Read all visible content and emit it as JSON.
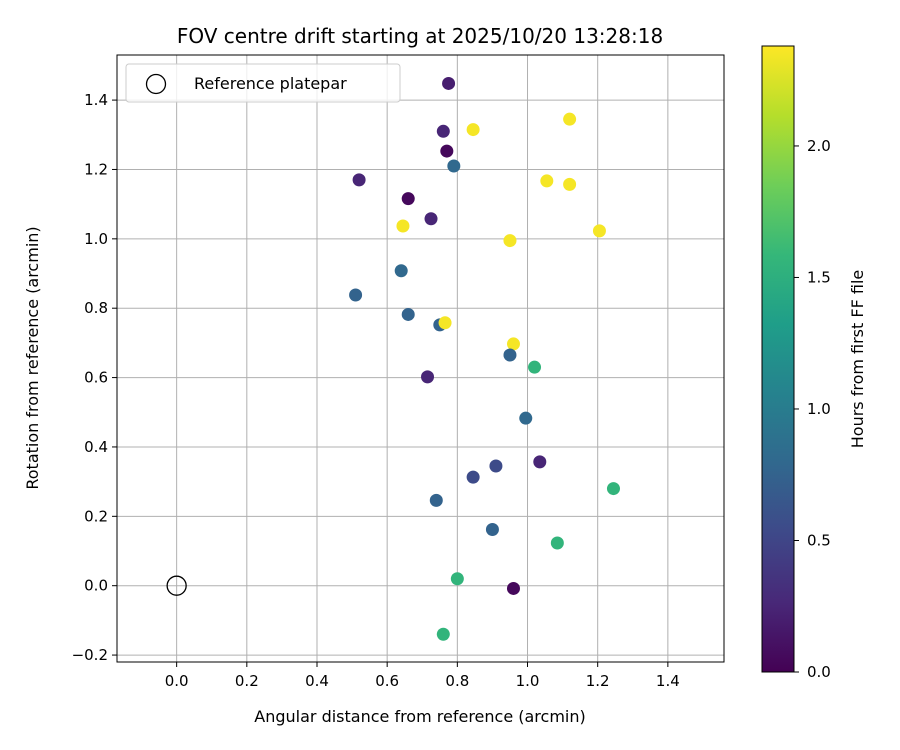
{
  "chart_data": {
    "type": "scatter",
    "title": "FOV centre drift starting at 2025/10/20 13:28:18",
    "xlabel": "Angular distance from reference (arcmin)",
    "ylabel": "Rotation from reference (arcmin)",
    "xlim": [
      -0.17,
      1.56
    ],
    "ylim": [
      -0.22,
      1.53
    ],
    "xticks": [
      0.0,
      0.2,
      0.4,
      0.6,
      0.8,
      1.0,
      1.2,
      1.4
    ],
    "xtick_labels": [
      "0.0",
      "0.2",
      "0.4",
      "0.6",
      "0.8",
      "1.0",
      "1.2",
      "1.4"
    ],
    "yticks": [
      -0.2,
      0.0,
      0.2,
      0.4,
      0.6,
      0.8,
      1.0,
      1.2,
      1.4
    ],
    "ytick_labels": [
      "−0.2",
      "0.0",
      "0.2",
      "0.4",
      "0.6",
      "0.8",
      "1.0",
      "1.2",
      "1.4"
    ],
    "grid": true,
    "legend": {
      "position": "top-left",
      "entries": [
        "Reference platepar"
      ]
    },
    "reference_point": {
      "x": 0.0,
      "y": 0.0,
      "label": "Reference platepar"
    },
    "colorbar": {
      "label": "Hours from first FF file",
      "range": [
        0.0,
        2.38
      ],
      "ticks": [
        0.0,
        0.5,
        1.0,
        1.5,
        2.0
      ],
      "tick_labels": [
        "0.0",
        "0.5",
        "1.0",
        "1.5",
        "2.0"
      ],
      "colormap": "viridis",
      "colormap_stops": [
        "#440154",
        "#482878",
        "#3e4989",
        "#31688e",
        "#26828e",
        "#1f9e89",
        "#35b779",
        "#6ece58",
        "#b5de2b",
        "#fde725"
      ]
    },
    "series": [
      {
        "name": "FOV centre drift",
        "points": [
          {
            "x": 0.775,
            "y": 1.448,
            "c": 0.2
          },
          {
            "x": 0.76,
            "y": 1.31,
            "c": 0.25
          },
          {
            "x": 0.845,
            "y": 1.315,
            "c": 2.35
          },
          {
            "x": 1.12,
            "y": 1.345,
            "c": 2.35
          },
          {
            "x": 0.77,
            "y": 1.253,
            "c": 0.05
          },
          {
            "x": 0.79,
            "y": 1.21,
            "c": 0.8
          },
          {
            "x": 0.52,
            "y": 1.17,
            "c": 0.25
          },
          {
            "x": 1.055,
            "y": 1.167,
            "c": 2.35
          },
          {
            "x": 1.12,
            "y": 1.157,
            "c": 2.35
          },
          {
            "x": 0.66,
            "y": 1.116,
            "c": 0.05
          },
          {
            "x": 0.725,
            "y": 1.058,
            "c": 0.25
          },
          {
            "x": 0.645,
            "y": 1.037,
            "c": 2.35
          },
          {
            "x": 1.205,
            "y": 1.023,
            "c": 2.35
          },
          {
            "x": 0.95,
            "y": 0.995,
            "c": 2.35
          },
          {
            "x": 0.64,
            "y": 0.908,
            "c": 0.8
          },
          {
            "x": 0.51,
            "y": 0.838,
            "c": 0.75
          },
          {
            "x": 0.66,
            "y": 0.782,
            "c": 0.75
          },
          {
            "x": 0.75,
            "y": 0.752,
            "c": 0.75
          },
          {
            "x": 0.765,
            "y": 0.758,
            "c": 2.35
          },
          {
            "x": 0.96,
            "y": 0.697,
            "c": 2.35
          },
          {
            "x": 0.95,
            "y": 0.665,
            "c": 0.75
          },
          {
            "x": 1.02,
            "y": 0.63,
            "c": 1.55
          },
          {
            "x": 0.715,
            "y": 0.602,
            "c": 0.25
          },
          {
            "x": 0.995,
            "y": 0.483,
            "c": 0.8
          },
          {
            "x": 1.035,
            "y": 0.357,
            "c": 0.25
          },
          {
            "x": 0.91,
            "y": 0.345,
            "c": 0.55
          },
          {
            "x": 0.845,
            "y": 0.313,
            "c": 0.55
          },
          {
            "x": 1.245,
            "y": 0.28,
            "c": 1.55
          },
          {
            "x": 0.74,
            "y": 0.246,
            "c": 0.75
          },
          {
            "x": 0.9,
            "y": 0.162,
            "c": 0.75
          },
          {
            "x": 1.085,
            "y": 0.123,
            "c": 1.55
          },
          {
            "x": 0.8,
            "y": 0.02,
            "c": 1.55
          },
          {
            "x": 0.96,
            "y": -0.008,
            "c": 0.05
          },
          {
            "x": 0.76,
            "y": -0.14,
            "c": 1.55
          }
        ]
      }
    ]
  }
}
